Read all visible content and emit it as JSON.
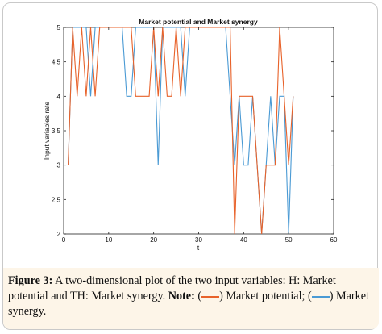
{
  "chart_data": {
    "type": "line",
    "title": "Market potential and Market synergy",
    "xlabel": "t",
    "ylabel": "Input variables rate",
    "xlim": [
      0,
      60
    ],
    "ylim": [
      2,
      5
    ],
    "xticks": [
      0,
      10,
      20,
      30,
      40,
      50,
      60
    ],
    "yticks": [
      2,
      2.5,
      3,
      3.5,
      4,
      4.5,
      5
    ],
    "grid": false,
    "series": [
      {
        "color": "#e8622a",
        "x": [
          1,
          2,
          3,
          4,
          5,
          6,
          7,
          8,
          9,
          10,
          11,
          12,
          13,
          14,
          15,
          16,
          17,
          18,
          19,
          20,
          21,
          22,
          23,
          24,
          25,
          26,
          27,
          28,
          29,
          30,
          31,
          32,
          33,
          34,
          35,
          36,
          37,
          38,
          39,
          40,
          41,
          42,
          43,
          44,
          45,
          46,
          47,
          48,
          49,
          50,
          51
        ],
        "values": [
          3,
          5,
          4,
          5,
          4,
          5,
          4,
          5,
          5,
          5,
          5,
          5,
          5,
          5,
          5,
          4,
          4,
          4,
          4,
          5,
          4,
          5,
          4,
          4,
          5,
          4,
          5,
          5,
          5,
          5,
          5,
          5,
          5,
          5,
          5,
          5,
          5,
          2,
          4,
          4,
          4,
          4,
          3,
          2,
          3,
          3,
          3,
          5,
          4,
          3,
          4
        ]
      },
      {
        "color": "#4a9ad4",
        "x": [
          1,
          2,
          3,
          4,
          5,
          6,
          7,
          8,
          9,
          10,
          11,
          12,
          13,
          14,
          15,
          16,
          17,
          18,
          19,
          20,
          21,
          22,
          23,
          24,
          25,
          26,
          27,
          28,
          29,
          30,
          31,
          32,
          33,
          34,
          35,
          36,
          37,
          38,
          39,
          40,
          41,
          42,
          43,
          44,
          45,
          46,
          47,
          48,
          49,
          50,
          51
        ],
        "values": [
          3,
          5,
          5,
          5,
          5,
          4,
          5,
          5,
          5,
          5,
          5,
          5,
          5,
          4,
          4,
          5,
          5,
          5,
          5,
          5,
          3,
          5,
          5,
          5,
          5,
          5,
          4,
          5,
          5,
          5,
          5,
          5,
          5,
          5,
          5,
          5,
          4,
          3,
          4,
          3,
          3,
          4,
          3,
          2,
          3,
          4,
          3,
          4,
          4,
          2,
          4
        ]
      }
    ]
  },
  "caption": {
    "label": "Figure 3:",
    "text1": "A two-dimensional plot of the two input variables: H: Market potential and TH:  Market synergy.",
    "note_label": "Note:",
    "open_paren1": "(",
    "close_text1": ") Market potential; (",
    "close_text2": ") Market synergy."
  }
}
